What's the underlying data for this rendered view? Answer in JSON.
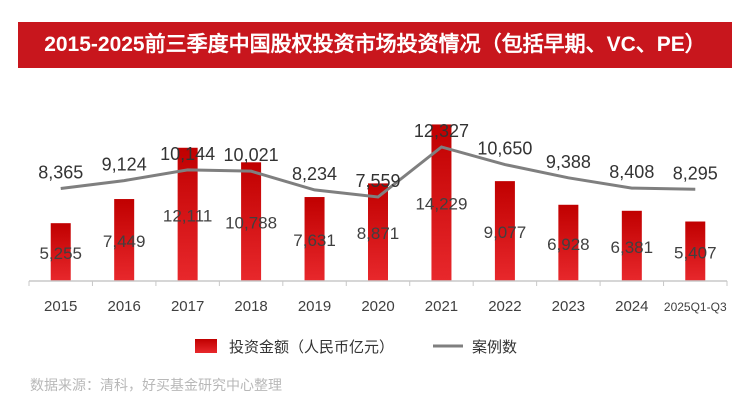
{
  "chart_data": {
    "type": "bar+line",
    "title": "2015-2025前三季度中国股权投资市场投资情况（包括早期、VC、PE）",
    "categories": [
      "2015",
      "2016",
      "2017",
      "2018",
      "2019",
      "2020",
      "2021",
      "2022",
      "2023",
      "2024",
      "2025Q1-Q3"
    ],
    "series": [
      {
        "name": "投资金额（人民币亿元）",
        "type": "bar",
        "color": "#c8161d",
        "values": [
          5255,
          7449,
          12111,
          10788,
          7631,
          8871,
          14229,
          9077,
          6928,
          6381,
          5407
        ],
        "labels": [
          "5,255",
          "7,449",
          "12,111",
          "10,788",
          "7,631",
          "8,871",
          "14,229",
          "9,077",
          "6,928",
          "6,381",
          "5,407"
        ],
        "ylim": [
          0,
          17360
        ]
      },
      {
        "name": "案例数",
        "type": "line",
        "color": "#7f7f7f",
        "values": [
          8365,
          9124,
          10144,
          10021,
          8234,
          7559,
          12327,
          10650,
          9388,
          8408,
          8295
        ],
        "labels": [
          "8,365",
          "9,124",
          "10,144",
          "10,021",
          "8,234",
          "7,559",
          "12,327",
          "10,650",
          "9,388",
          "8,408",
          "8,295"
        ],
        "ylim": [
          -450,
          17760
        ]
      }
    ],
    "legend": "bottom",
    "grid": false
  },
  "source": "数据来源：清科，好买基金研究中心整理"
}
